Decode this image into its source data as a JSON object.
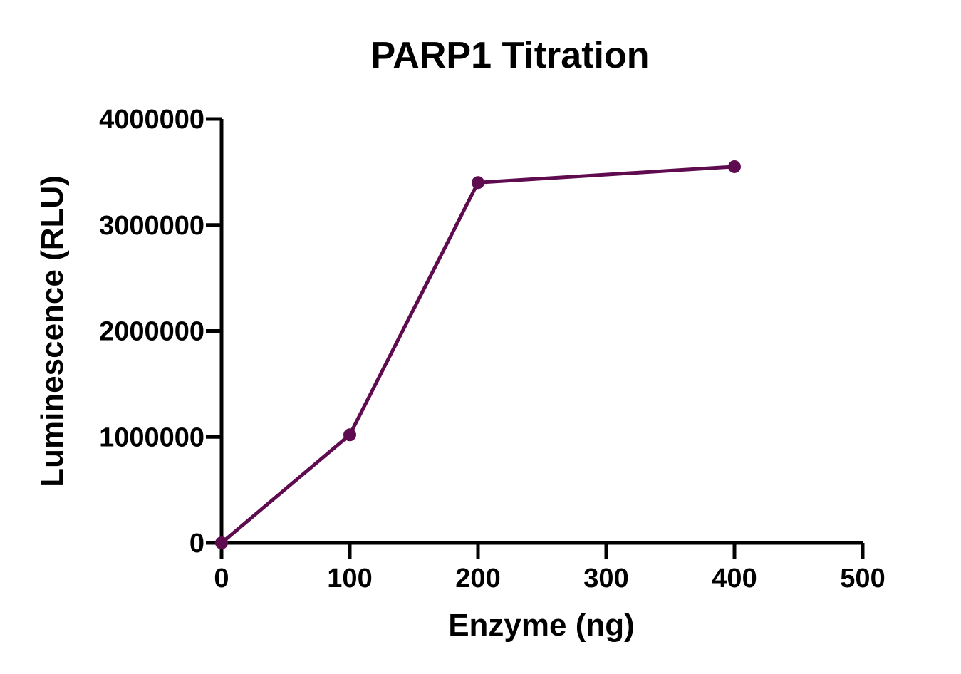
{
  "chart_data": {
    "type": "line",
    "title": "PARP1 Titration",
    "xlabel": "Enzyme (ng)",
    "ylabel": "Luminescence (RLU)",
    "xlim": [
      0,
      500
    ],
    "ylim": [
      0,
      4000000
    ],
    "x_ticks": [
      "0",
      "100",
      "200",
      "300",
      "400",
      "500"
    ],
    "y_ticks": [
      "0",
      "1000000",
      "2000000",
      "3000000",
      "4000000"
    ],
    "x_tick_values": [
      0,
      100,
      200,
      300,
      400,
      500
    ],
    "y_tick_values": [
      0,
      1000000,
      2000000,
      3000000,
      4000000
    ],
    "grid": false,
    "series": [
      {
        "color": "#5e0b4f",
        "points": [
          {
            "x": 0,
            "y": 0
          },
          {
            "x": 100,
            "y": 1020000
          },
          {
            "x": 200,
            "y": 3400000
          },
          {
            "x": 400,
            "y": 3550000
          }
        ]
      }
    ]
  }
}
